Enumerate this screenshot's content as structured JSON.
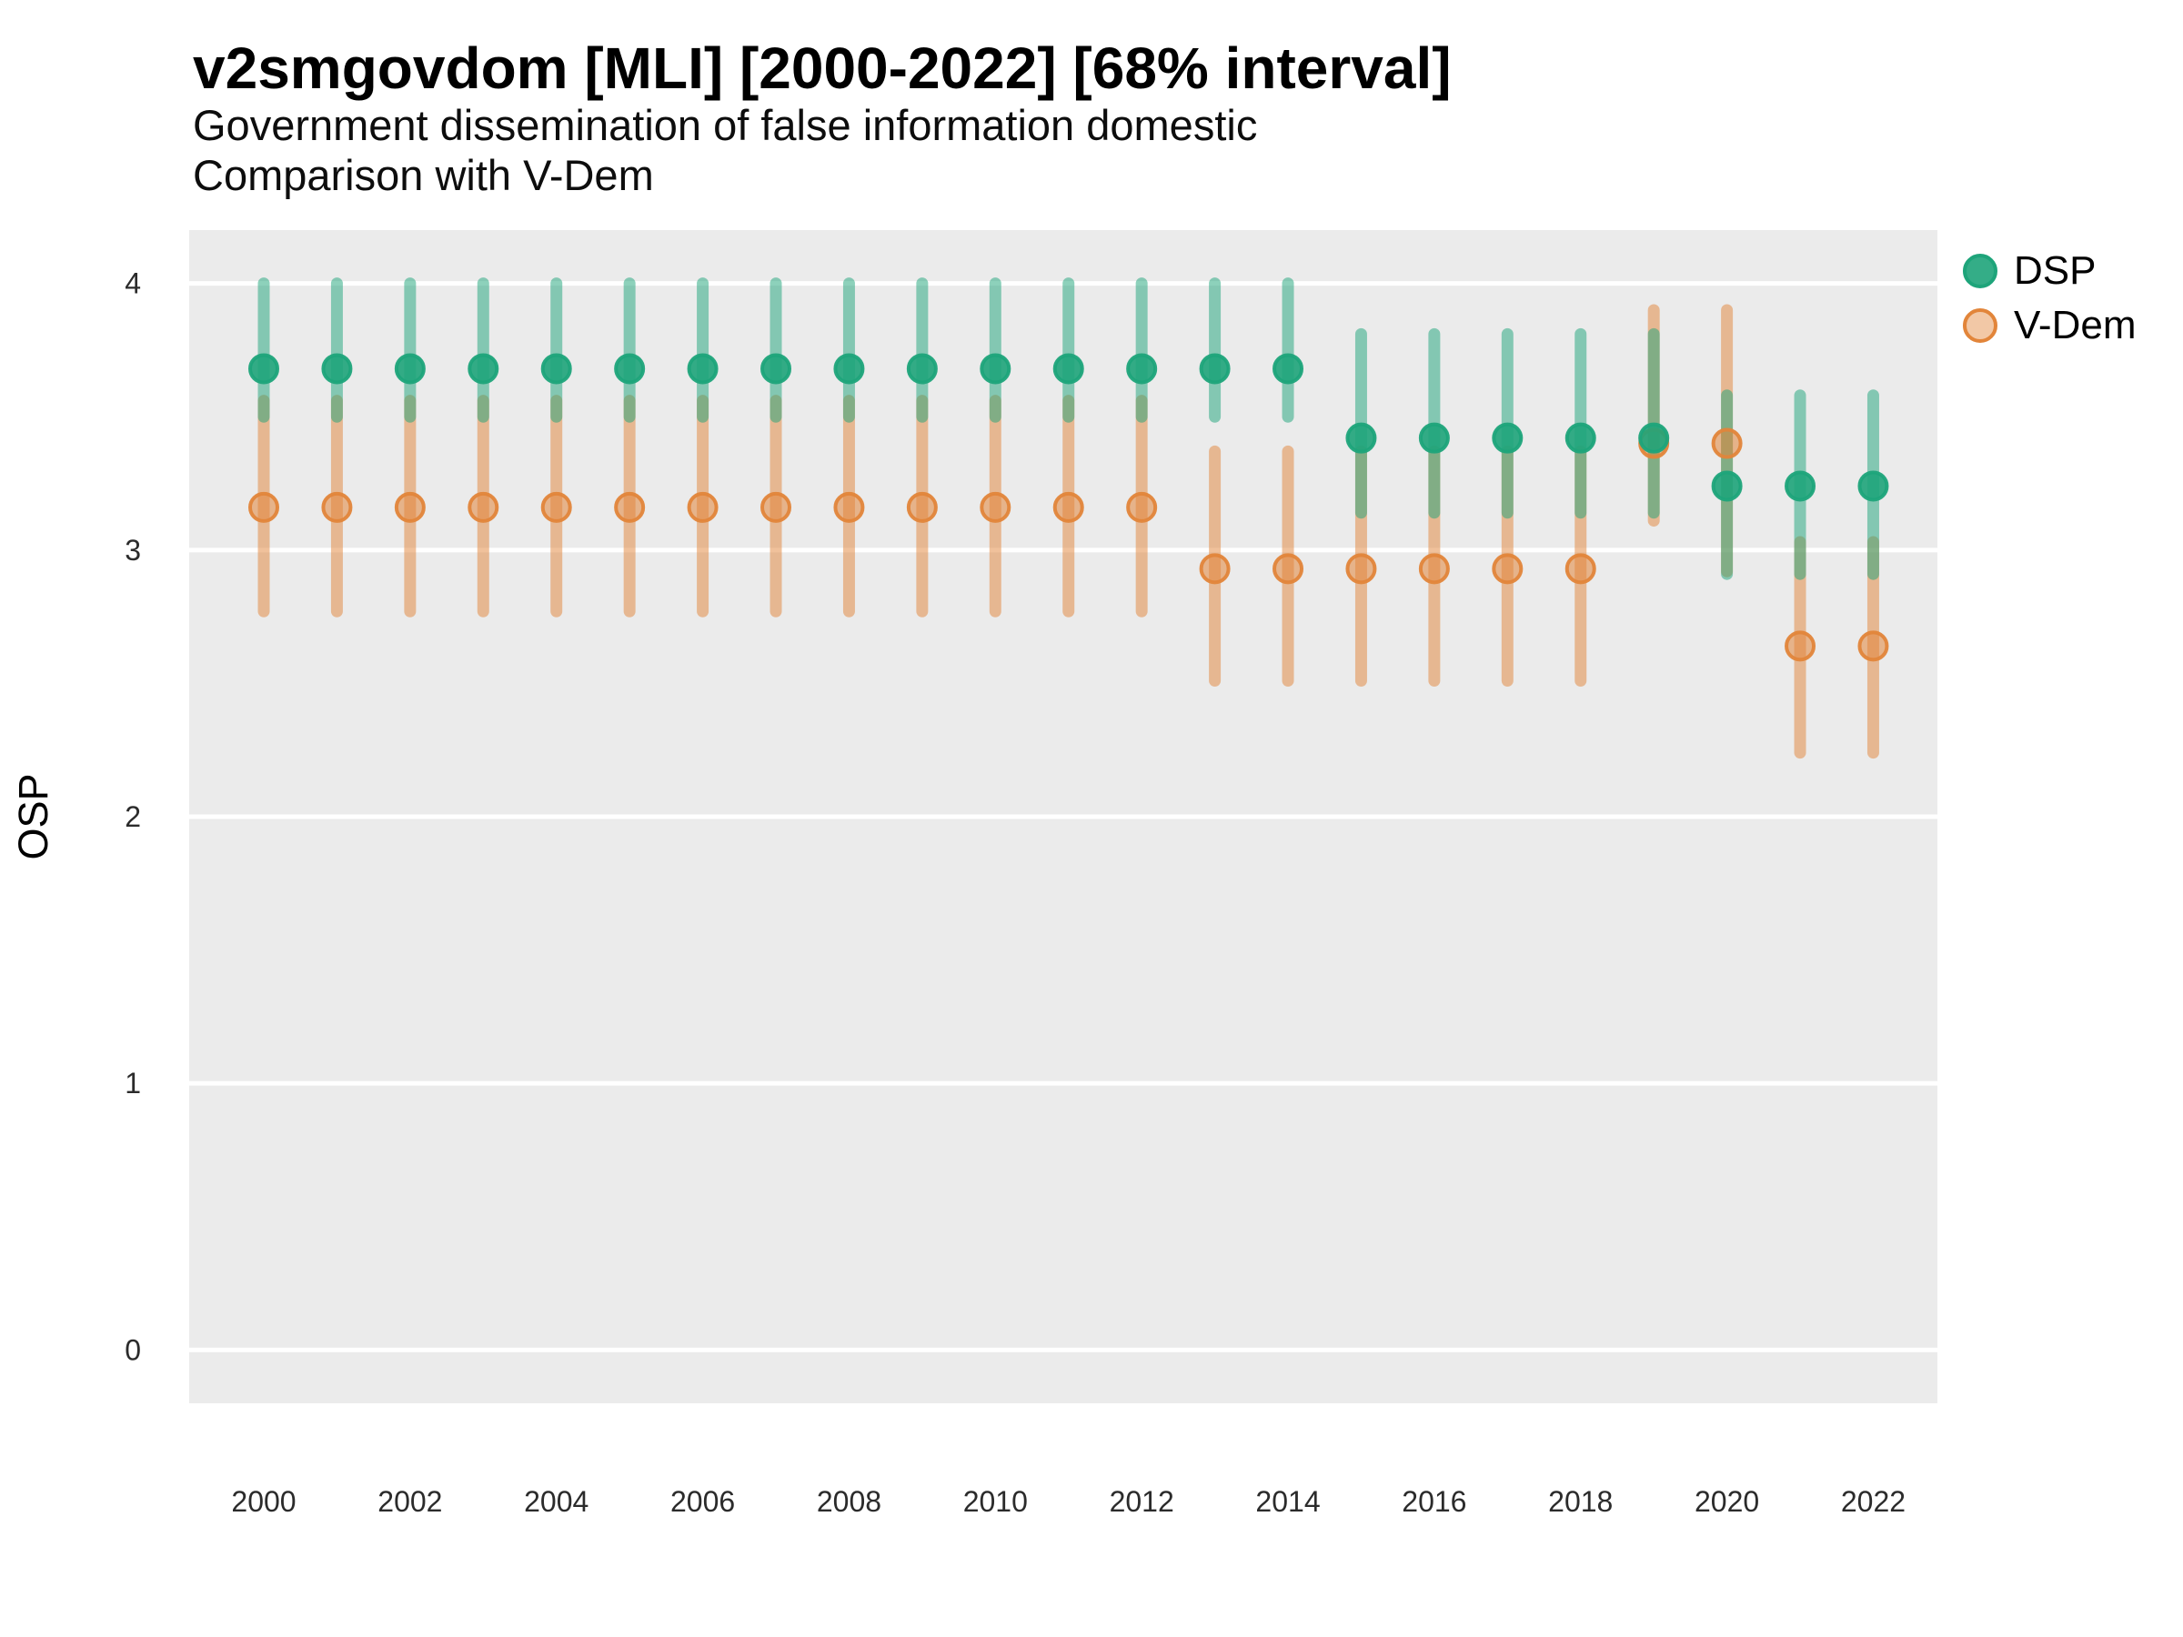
{
  "header": {
    "title": "v2smgovdom [MLI] [2000-2022] [68% interval]",
    "subtitle_line1": "Government dissemination of false information domestic",
    "subtitle_line2": "Comparison with V-Dem"
  },
  "y_axis": {
    "title": "OSP",
    "tick_labels": [
      "4",
      "3",
      "2",
      "1",
      "0"
    ],
    "tick_values": [
      4,
      3,
      2,
      1,
      0
    ]
  },
  "x_axis": {
    "tick_labels": [
      "2000",
      "2002",
      "2004",
      "2006",
      "2008",
      "2010",
      "2012",
      "2014",
      "2016",
      "2018",
      "2020",
      "2022"
    ]
  },
  "legend": {
    "items": [
      {
        "label": "DSP",
        "color": "#1ea47a"
      },
      {
        "label": "V-Dem",
        "color": "#e2853a"
      }
    ]
  },
  "colors": {
    "panel_background": "#ebebeb",
    "gridline": "#ffffff",
    "tick_text": "#2b2b2b",
    "dsp": "#1ea47a",
    "vdem": "#e2853a"
  },
  "chart_data": {
    "type": "scatter",
    "subtype": "pointrange",
    "title": "v2smgovdom [MLI] [2000-2022] [68% interval]",
    "subtitle": "Government dissemination of false information domestic — Comparison with V-Dem",
    "interval": "68%",
    "xlabel": "",
    "ylabel": "OSP",
    "ylim": [
      -0.2,
      4.2
    ],
    "grid": "horizontal-major-only",
    "legend_position": "right",
    "x": [
      2000,
      2001,
      2002,
      2003,
      2004,
      2005,
      2006,
      2007,
      2008,
      2009,
      2010,
      2011,
      2012,
      2013,
      2014,
      2015,
      2016,
      2017,
      2018,
      2019,
      2020,
      2021,
      2022
    ],
    "series": [
      {
        "name": "DSP",
        "color": "#1ea47a",
        "point_fill_opacity": 0.9,
        "values": [
          3.68,
          3.68,
          3.68,
          3.68,
          3.68,
          3.68,
          3.68,
          3.68,
          3.68,
          3.68,
          3.68,
          3.68,
          3.68,
          3.68,
          3.68,
          3.42,
          3.42,
          3.42,
          3.42,
          3.42,
          3.24,
          3.24,
          3.24
        ],
        "lower": [
          3.5,
          3.5,
          3.5,
          3.5,
          3.5,
          3.5,
          3.5,
          3.5,
          3.5,
          3.5,
          3.5,
          3.5,
          3.5,
          3.5,
          3.5,
          3.14,
          3.14,
          3.14,
          3.14,
          3.14,
          2.91,
          2.91,
          2.91
        ],
        "upper": [
          4.0,
          4.0,
          4.0,
          4.0,
          4.0,
          4.0,
          4.0,
          4.0,
          4.0,
          4.0,
          4.0,
          4.0,
          4.0,
          4.0,
          4.0,
          3.81,
          3.81,
          3.81,
          3.81,
          3.81,
          3.58,
          3.58,
          3.58
        ]
      },
      {
        "name": "V-Dem",
        "color": "#e2853a",
        "point_fill_opacity": 0.55,
        "values": [
          3.16,
          3.16,
          3.16,
          3.16,
          3.16,
          3.16,
          3.16,
          3.16,
          3.16,
          3.16,
          3.16,
          3.16,
          3.16,
          2.93,
          2.93,
          2.93,
          2.93,
          2.93,
          2.93,
          3.4,
          3.4,
          2.64,
          2.64
        ],
        "lower": [
          2.77,
          2.77,
          2.77,
          2.77,
          2.77,
          2.77,
          2.77,
          2.77,
          2.77,
          2.77,
          2.77,
          2.77,
          2.77,
          2.51,
          2.51,
          2.51,
          2.51,
          2.51,
          2.51,
          3.11,
          2.92,
          2.24,
          2.24
        ],
        "upper": [
          3.56,
          3.56,
          3.56,
          3.56,
          3.56,
          3.56,
          3.56,
          3.56,
          3.56,
          3.56,
          3.56,
          3.56,
          3.56,
          3.37,
          3.37,
          3.37,
          3.37,
          3.37,
          3.37,
          3.9,
          3.9,
          3.03,
          3.03
        ]
      }
    ]
  }
}
